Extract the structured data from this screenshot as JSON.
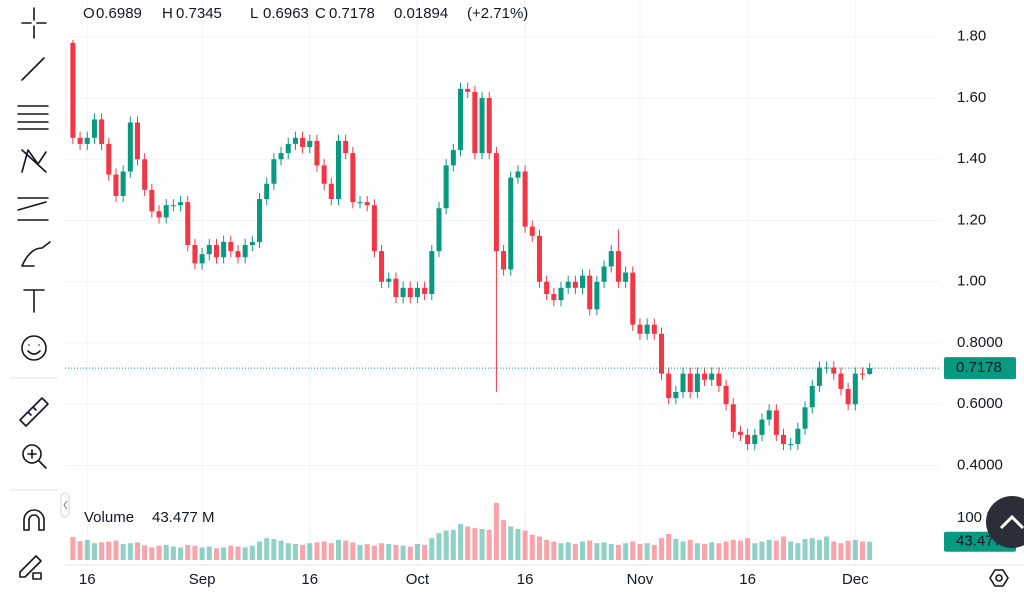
{
  "chart_data": {
    "type": "candlestick",
    "ohlc_labels": [
      "O",
      "H",
      "L",
      "C"
    ],
    "change": 0.01894,
    "change_pct_label": "(+2.71%)",
    "up_color": "#089981",
    "down_color": "#f23645",
    "grid": true,
    "xlim": [
      -1.1,
      120.8
    ],
    "xticks": [
      {
        "value": 2,
        "label": "16"
      },
      {
        "value": 18,
        "label": "Sep"
      },
      {
        "value": 33,
        "label": "16"
      },
      {
        "value": 48,
        "label": "Oct"
      },
      {
        "value": 63,
        "label": "16"
      },
      {
        "value": 79,
        "label": "Nov"
      },
      {
        "value": 94,
        "label": "16"
      },
      {
        "value": 109,
        "label": "Dec"
      }
    ],
    "ylim": [
      0.32,
      1.92
    ],
    "yticks": [
      {
        "value": 1.8,
        "label": "1.80"
      },
      {
        "value": 1.6,
        "label": "1.60"
      },
      {
        "value": 1.4,
        "label": "1.40"
      },
      {
        "value": 1.2,
        "label": "1.20"
      },
      {
        "value": 1.0,
        "label": "1.00"
      },
      {
        "value": 0.8,
        "label": "0.8000"
      },
      {
        "value": 0.6,
        "label": "0.6000"
      },
      {
        "value": 0.4,
        "label": "0.4000"
      }
    ],
    "series": {
      "open": [
        1.78,
        1.47,
        1.45,
        1.47,
        1.53,
        1.45,
        1.35,
        1.28,
        1.36,
        1.52,
        1.4,
        1.3,
        1.23,
        1.21,
        1.25,
        1.25,
        1.26,
        1.12,
        1.06,
        1.09,
        1.12,
        1.08,
        1.13,
        1.1,
        1.08,
        1.12,
        1.13,
        1.27,
        1.32,
        1.4,
        1.42,
        1.45,
        1.47,
        1.44,
        1.46,
        1.38,
        1.32,
        1.27,
        1.46,
        1.42,
        1.26,
        1.26,
        1.25,
        1.1,
        1.0,
        1.01,
        0.95,
        0.98,
        0.95,
        0.98,
        0.96,
        1.1,
        1.24,
        1.38,
        1.43,
        1.63,
        1.62,
        1.42,
        1.6,
        1.42,
        1.1,
        1.04,
        1.34,
        1.36,
        1.18,
        1.15,
        1.0,
        0.96,
        0.94,
        0.98,
        1.0,
        0.98,
        1.02,
        0.91,
        1.0,
        1.05,
        1.1,
        1.0,
        1.03,
        0.86,
        0.83,
        0.86,
        0.83,
        0.7,
        0.62,
        0.64,
        0.7,
        0.64,
        0.7,
        0.68,
        0.7,
        0.66,
        0.6,
        0.51,
        0.5,
        0.47,
        0.5,
        0.55,
        0.58,
        0.5,
        0.47,
        0.47,
        0.52,
        0.59,
        0.66,
        0.72,
        0.72,
        0.7,
        0.65,
        0.6,
        0.7,
        0.6989
      ],
      "high": [
        1.79,
        1.49,
        1.49,
        1.55,
        1.55,
        1.47,
        1.37,
        1.38,
        1.54,
        1.54,
        1.42,
        1.32,
        1.25,
        1.27,
        1.27,
        1.28,
        1.28,
        1.14,
        1.11,
        1.14,
        1.14,
        1.15,
        1.15,
        1.12,
        1.14,
        1.15,
        1.29,
        1.34,
        1.42,
        1.44,
        1.47,
        1.49,
        1.49,
        1.48,
        1.48,
        1.4,
        1.34,
        1.48,
        1.48,
        1.44,
        1.28,
        1.28,
        1.27,
        1.12,
        1.03,
        1.03,
        1.0,
        1.0,
        1.0,
        1.0,
        1.12,
        1.26,
        1.4,
        1.45,
        1.65,
        1.65,
        1.64,
        1.62,
        1.62,
        1.44,
        1.12,
        1.36,
        1.38,
        1.38,
        1.2,
        1.17,
        1.02,
        0.98,
        1.0,
        1.02,
        1.02,
        1.04,
        1.04,
        1.02,
        1.07,
        1.12,
        1.17,
        1.05,
        1.05,
        0.88,
        0.88,
        0.88,
        0.85,
        0.72,
        0.66,
        0.72,
        0.72,
        0.72,
        0.72,
        0.72,
        0.72,
        0.68,
        0.62,
        0.53,
        0.52,
        0.52,
        0.57,
        0.6,
        0.6,
        0.52,
        0.49,
        0.54,
        0.61,
        0.68,
        0.74,
        0.74,
        0.74,
        0.72,
        0.67,
        0.72,
        0.72,
        0.7345
      ],
      "low": [
        1.45,
        1.43,
        1.43,
        1.45,
        1.43,
        1.33,
        1.26,
        1.26,
        1.34,
        1.38,
        1.28,
        1.21,
        1.19,
        1.19,
        1.23,
        1.23,
        1.1,
        1.04,
        1.04,
        1.07,
        1.06,
        1.06,
        1.08,
        1.06,
        1.06,
        1.1,
        1.11,
        1.25,
        1.3,
        1.38,
        1.4,
        1.43,
        1.42,
        1.42,
        1.36,
        1.3,
        1.25,
        1.25,
        1.4,
        1.24,
        1.24,
        1.23,
        1.08,
        0.98,
        0.98,
        0.93,
        0.93,
        0.93,
        0.93,
        0.94,
        0.94,
        1.08,
        1.22,
        1.36,
        1.41,
        1.6,
        1.4,
        1.4,
        1.4,
        0.64,
        1.02,
        1.02,
        1.32,
        1.16,
        1.13,
        0.98,
        0.94,
        0.92,
        0.92,
        0.96,
        0.96,
        0.96,
        0.89,
        0.89,
        0.98,
        1.03,
        0.98,
        0.98,
        0.84,
        0.81,
        0.81,
        0.81,
        0.68,
        0.6,
        0.6,
        0.62,
        0.62,
        0.62,
        0.66,
        0.66,
        0.64,
        0.58,
        0.49,
        0.48,
        0.45,
        0.45,
        0.48,
        0.53,
        0.48,
        0.45,
        0.45,
        0.45,
        0.5,
        0.57,
        0.64,
        0.7,
        0.68,
        0.63,
        0.58,
        0.58,
        0.68,
        0.6963
      ],
      "close": [
        1.47,
        1.45,
        1.47,
        1.53,
        1.45,
        1.35,
        1.28,
        1.36,
        1.52,
        1.4,
        1.3,
        1.23,
        1.21,
        1.25,
        1.25,
        1.26,
        1.12,
        1.06,
        1.09,
        1.12,
        1.08,
        1.13,
        1.1,
        1.08,
        1.12,
        1.13,
        1.27,
        1.32,
        1.4,
        1.42,
        1.45,
        1.47,
        1.44,
        1.46,
        1.38,
        1.32,
        1.27,
        1.46,
        1.42,
        1.26,
        1.26,
        1.25,
        1.1,
        1.0,
        1.01,
        0.95,
        0.98,
        0.95,
        0.98,
        0.96,
        1.1,
        1.24,
        1.38,
        1.43,
        1.63,
        1.62,
        1.42,
        1.6,
        1.42,
        1.1,
        1.04,
        1.34,
        1.36,
        1.18,
        1.15,
        1.0,
        0.96,
        0.94,
        0.98,
        1.0,
        0.98,
        1.02,
        0.91,
        1.0,
        1.05,
        1.1,
        1.0,
        1.03,
        0.86,
        0.83,
        0.86,
        0.83,
        0.7,
        0.62,
        0.64,
        0.7,
        0.64,
        0.7,
        0.68,
        0.7,
        0.66,
        0.6,
        0.51,
        0.5,
        0.47,
        0.5,
        0.55,
        0.58,
        0.5,
        0.47,
        0.47,
        0.52,
        0.59,
        0.66,
        0.72,
        0.72,
        0.7,
        0.65,
        0.6,
        0.7,
        0.6989,
        0.7178
      ]
    },
    "volume": {
      "name": "Volume",
      "last_label": "43.477 M",
      "ylim": [
        0,
        150
      ],
      "yticks": [
        {
          "value": 100,
          "label": "100 M"
        }
      ],
      "values": [
        55,
        45,
        48,
        40,
        42,
        44,
        46,
        38,
        40,
        42,
        35,
        30,
        34,
        36,
        32,
        30,
        36,
        34,
        30,
        32,
        28,
        30,
        34,
        32,
        30,
        34,
        44,
        52,
        50,
        46,
        40,
        38,
        36,
        40,
        42,
        44,
        40,
        48,
        46,
        42,
        36,
        38,
        34,
        40,
        38,
        36,
        34,
        32,
        38,
        36,
        52,
        64,
        70,
        72,
        86,
        80,
        76,
        74,
        72,
        136,
        95,
        80,
        74,
        70,
        60,
        56,
        48,
        44,
        40,
        42,
        38,
        44,
        46,
        40,
        42,
        38,
        36,
        40,
        44,
        38,
        40,
        36,
        52,
        62,
        50,
        44,
        48,
        40,
        38,
        42,
        40,
        44,
        48,
        46,
        52,
        40,
        44,
        48,
        46,
        56,
        44,
        40,
        50,
        52,
        48,
        56,
        44,
        40,
        46,
        48,
        44,
        43.477
      ]
    }
  }
}
